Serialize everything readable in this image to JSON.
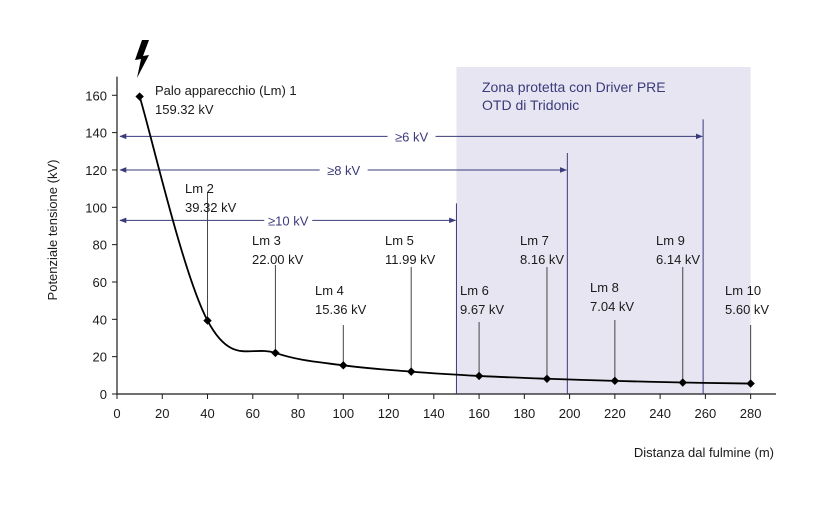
{
  "chart_data": {
    "type": "line",
    "xlabel": "Distanza dal fulmine (m)",
    "ylabel": "Potenziale tensione (kV)",
    "xlim": [
      0,
      285
    ],
    "ylim": [
      0,
      170
    ],
    "x_ticks": [
      0,
      20,
      40,
      60,
      80,
      100,
      120,
      140,
      160,
      180,
      200,
      220,
      240,
      260,
      280
    ],
    "y_ticks": [
      0,
      20,
      40,
      60,
      80,
      100,
      120,
      140,
      160
    ],
    "grid": false,
    "series": [
      {
        "x": [
          10,
          40,
          70,
          100,
          130,
          160,
          190,
          220,
          250,
          280
        ],
        "values": [
          159.32,
          39.32,
          22.0,
          15.36,
          11.99,
          9.67,
          8.16,
          7.04,
          6.14,
          5.6
        ],
        "color": "#000000"
      }
    ],
    "points": [
      {
        "x": 10,
        "y": 159.32,
        "name": "Palo apparecchio (Lm) 1",
        "value": "159.32 kV"
      },
      {
        "x": 40,
        "y": 39.32,
        "name": "Lm 2",
        "value": "39.32 kV"
      },
      {
        "x": 70,
        "y": 22.0,
        "name": "Lm 3",
        "value": "22.00 kV"
      },
      {
        "x": 100,
        "y": 15.36,
        "name": "Lm 4",
        "value": "15.36 kV"
      },
      {
        "x": 130,
        "y": 11.99,
        "name": "Lm 5",
        "value": "11.99 kV"
      },
      {
        "x": 160,
        "y": 9.67,
        "name": "Lm 6",
        "value": "9.67 kV"
      },
      {
        "x": 190,
        "y": 8.16,
        "name": "Lm 7",
        "value": "8.16 kV"
      },
      {
        "x": 220,
        "y": 7.04,
        "name": "Lm 8",
        "value": "7.04 kV"
      },
      {
        "x": 250,
        "y": 6.14,
        "name": "Lm 9",
        "value": "6.14 kV"
      },
      {
        "x": 280,
        "y": 5.6,
        "name": "Lm 10",
        "value": "5.60 kV"
      }
    ],
    "zone": {
      "line1": "Zona protetta con Driver PRE",
      "line2": "OTD di Tridonic",
      "x_range": [
        150,
        280
      ],
      "color": "#e6e5f1"
    },
    "arrows": [
      {
        "label": "≥6 kV",
        "y": 138,
        "x_end": 259
      },
      {
        "label": "≥8 kV",
        "y": 120,
        "x_end": 199
      },
      {
        "label": "≥10 kV",
        "y": 93,
        "x_end": 150
      }
    ],
    "accent_color": "#3b3a7a",
    "lightning_icon": "lightning-bolt-icon"
  }
}
